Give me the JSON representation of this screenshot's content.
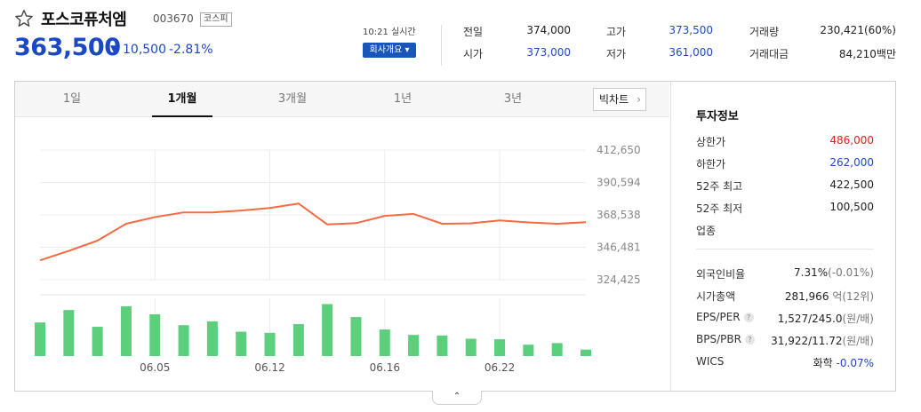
{
  "header": {
    "stock_name": "포스코퓨처엠",
    "stock_code": "003670",
    "market_badge": "코스피",
    "price": "363,500",
    "change_arrow": "▼",
    "change": "10,500",
    "change_pct": "-2.81%",
    "realtime_label": "10:21 실시간",
    "company_button": "회사개요 ▾",
    "quotes": [
      {
        "label": "전일",
        "value": "374,000",
        "color": "#222222"
      },
      {
        "label": "고가",
        "value": "373,500",
        "color": "#2049c4"
      },
      {
        "label": "거래량",
        "value": "230,421(60%)",
        "color": "#222222"
      },
      {
        "label": "시가",
        "value": "373,000",
        "color": "#2049c4"
      },
      {
        "label": "저가",
        "value": "361,000",
        "color": "#2049c4"
      },
      {
        "label": "거래대금",
        "value": "84,210백만",
        "color": "#222222"
      }
    ]
  },
  "tabs": [
    {
      "label": "1일"
    },
    {
      "label": "1개월",
      "active": true
    },
    {
      "label": "3개월"
    },
    {
      "label": "1년"
    },
    {
      "label": "3년"
    }
  ],
  "bigchart_button": {
    "label": "빅차트",
    "icon": "chevron-right-icon"
  },
  "chart_data": {
    "type": "line",
    "line_color": "#f26b43",
    "bar_color": "#5ccf7d",
    "y_ticks": [
      "412,650",
      "390,594",
      "368,538",
      "346,481",
      "324,425"
    ],
    "ylim": [
      324425,
      412650
    ],
    "x_tick_labels": [
      {
        "index": 4,
        "label": "06.05"
      },
      {
        "index": 8,
        "label": "06.12"
      },
      {
        "index": 12,
        "label": "06.16"
      },
      {
        "index": 16,
        "label": "06.22"
      }
    ],
    "grid": true,
    "price_series": [
      337600,
      344000,
      351000,
      362500,
      367000,
      370200,
      370200,
      371500,
      373200,
      376300,
      362000,
      362900,
      367900,
      369200,
      362500,
      362800,
      364800,
      363400,
      362500,
      363500
    ],
    "volume_series": [
      0.62,
      0.85,
      0.54,
      0.92,
      0.77,
      0.57,
      0.64,
      0.45,
      0.43,
      0.59,
      0.96,
      0.72,
      0.49,
      0.39,
      0.38,
      0.32,
      0.31,
      0.21,
      0.24,
      0.12
    ]
  },
  "invest_info": {
    "title": "투자정보",
    "rows_top": [
      {
        "label": "상한가",
        "value": "486,000",
        "color": "#e02020"
      },
      {
        "label": "하한가",
        "value": "262,000",
        "color": "#2049c4"
      },
      {
        "label": "52주 최고",
        "value": "422,500",
        "color": "#222222"
      },
      {
        "label": "52주 최저",
        "value": "100,500",
        "color": "#222222"
      },
      {
        "label": "업종",
        "value": "",
        "color": "#222222"
      }
    ],
    "rows_bottom": [
      {
        "label": "외국인비율",
        "value": "7.31%",
        "extra": "(-0.01%)",
        "help": false
      },
      {
        "label": "시가총액",
        "value": "281,966",
        "extra": "억(12위)",
        "help": false
      },
      {
        "label": "EPS/PER",
        "value": "1,527/245.0",
        "extra": "(원/배)",
        "help": true
      },
      {
        "label": "BPS/PBR",
        "value": "31,922/11.72",
        "extra": "(원/배)",
        "help": true
      },
      {
        "label": "WICS",
        "value": "화학",
        "extra": "-0.07%",
        "help": false
      }
    ]
  },
  "toggle_icon": "chevron-up-icon"
}
